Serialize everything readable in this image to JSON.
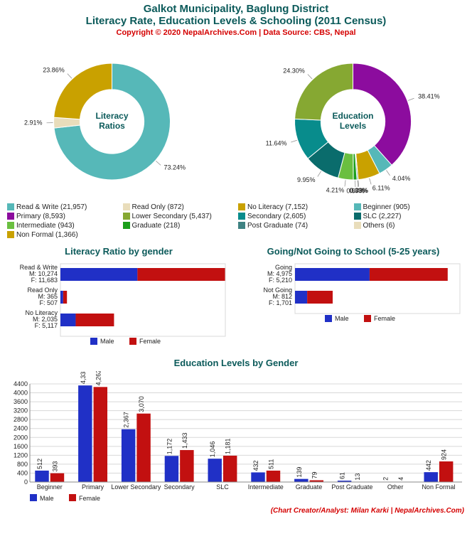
{
  "header": {
    "line1": "Galkot Municipality, Baglung District",
    "line2": "Literacy Rate, Education Levels & Schooling (2011 Census)",
    "copyright": "Copyright © 2020 NepalArchives.Com | Data Source: CBS, Nepal"
  },
  "palette": {
    "teal": "#56b8b8",
    "gold": "#c9a100",
    "beige": "#e9ddbb",
    "purple": "#8c0c9e",
    "olive": "#86a832",
    "teal2": "#088c8c",
    "dark_teal": "#0a6c6c",
    "slate_teal": "#3f8282",
    "green": "#1b9e1b",
    "light_green": "#6abf40",
    "male": "#2030c6",
    "female": "#c21010",
    "grid": "#d8d8d8",
    "text_heading": "#0b5a5a",
    "credit_red": "#d40000"
  },
  "donut_shared": {
    "inner_ratio": 0.55,
    "ring_width": 0.45
  },
  "literacy_donut": {
    "center_label": "Literacy Ratios",
    "slices": [
      {
        "label": "Read & Write",
        "count": 21957,
        "pct": 73.24,
        "color": "#56b8b8"
      },
      {
        "label": "Read Only",
        "count": 872,
        "pct": 2.91,
        "color": "#e9ddbb"
      },
      {
        "label": "No Literacy",
        "count": 7152,
        "pct": 23.86,
        "color": "#c9a100"
      }
    ],
    "legend_cols": 2
  },
  "edu_donut": {
    "center_label": "Education Levels",
    "slices": [
      {
        "label": "Primary",
        "count": 8593,
        "pct": 38.41,
        "color": "#8c0c9e"
      },
      {
        "label": "Beginner",
        "count": 905,
        "pct": 4.04,
        "color": "#56b8b8"
      },
      {
        "label": "Non Formal",
        "count": 1366,
        "pct": 6.11,
        "color": "#c9a100"
      },
      {
        "label": "Others",
        "count": 6,
        "pct": 0.03,
        "color": "#e9ddbb"
      },
      {
        "label": "Post Graduate",
        "count": 74,
        "pct": 0.33,
        "color": "#3f8282"
      },
      {
        "label": "Graduate",
        "count": 218,
        "pct": 0.97,
        "color": "#1b9e1b"
      },
      {
        "label": "Intermediate",
        "count": 943,
        "pct": 4.21,
        "color": "#6abf40"
      },
      {
        "label": "SLC",
        "count": 2227,
        "pct": 9.95,
        "color": "#0a6c6c"
      },
      {
        "label": "Secondary",
        "count": 2605,
        "pct": 11.64,
        "color": "#088c8c"
      },
      {
        "label": "Lower Secondary",
        "count": 5437,
        "pct": 24.3,
        "color": "#86a832"
      }
    ],
    "legend_cols": 2
  },
  "combined_legend": [
    {
      "label": "Read & Write (21,957)",
      "color": "#56b8b8"
    },
    {
      "label": "Read Only (872)",
      "color": "#e9ddbb"
    },
    {
      "label": "No Literacy (7,152)",
      "color": "#c9a100"
    },
    {
      "label": "Beginner (905)",
      "color": "#56b8b8"
    },
    {
      "label": "Primary (8,593)",
      "color": "#8c0c9e"
    },
    {
      "label": "Lower Secondary (5,437)",
      "color": "#86a832"
    },
    {
      "label": "Secondary (2,605)",
      "color": "#088c8c"
    },
    {
      "label": "SLC (2,227)",
      "color": "#0a6c6c"
    },
    {
      "label": "Intermediate (943)",
      "color": "#6abf40"
    },
    {
      "label": "Graduate (218)",
      "color": "#1b9e1b"
    },
    {
      "label": "Post Graduate (74)",
      "color": "#3f8282"
    },
    {
      "label": "Others (6)",
      "color": "#e9ddbb"
    },
    {
      "label": "Non Formal (1,366)",
      "color": "#c9a100"
    }
  ],
  "literacy_gender": {
    "title": "Literacy Ratio by gender",
    "max": 22000,
    "rows": [
      {
        "label": "Read & Write",
        "m": 10274,
        "f": 11683
      },
      {
        "label": "Read Only",
        "m": 365,
        "f": 507
      },
      {
        "label": "No Literacy",
        "m": 2035,
        "f": 5117
      }
    ],
    "legend": {
      "male": "Male",
      "female": "Female"
    }
  },
  "school_going": {
    "title": "Going/Not Going to School (5-25 years)",
    "max": 11000,
    "rows": [
      {
        "label": "Going",
        "m": 4975,
        "f": 5210
      },
      {
        "label": "Not Going",
        "m": 812,
        "f": 1701
      }
    ],
    "legend": {
      "male": "Male",
      "female": "Female"
    }
  },
  "edu_by_gender": {
    "title": "Education Levels by Gender",
    "ymax": 4400,
    "ystep": 400,
    "categories": [
      "Beginner",
      "Primary",
      "Lower Secondary",
      "Secondary",
      "SLC",
      "Intermediate",
      "Graduate",
      "Post Graduate",
      "Other",
      "Non Formal"
    ],
    "male": [
      512,
      4331,
      2367,
      1172,
      1046,
      432,
      139,
      61,
      2,
      442
    ],
    "female": [
      393,
      4262,
      3070,
      1433,
      1181,
      511,
      79,
      13,
      4,
      924
    ],
    "legend": {
      "male": "Male",
      "female": "Female"
    }
  },
  "credit": "(Chart Creator/Analyst: Milan Karki | NepalArchives.Com)"
}
